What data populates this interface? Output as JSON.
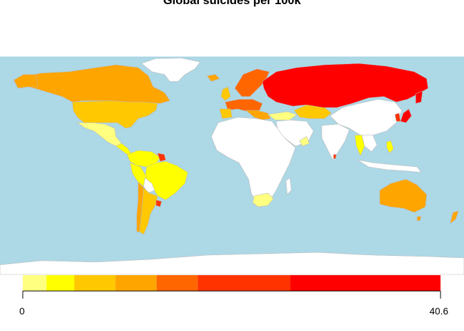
{
  "title": "Global suicides per 100k",
  "legend": {
    "min_label": "0",
    "max_label": "40.6",
    "colors": [
      "#FFFF80",
      "#FFFF00",
      "#FFC800",
      "#FFA500",
      "#FF6600",
      "#FF3300",
      "#FF0000"
    ],
    "breaks": [
      0,
      2.3,
      5,
      9,
      13,
      17,
      26,
      40.6
    ]
  },
  "colors": {
    "ocean": "#ADD8E6",
    "no_data": "#FFFFFF",
    "border": "#B9B9B9"
  }
}
